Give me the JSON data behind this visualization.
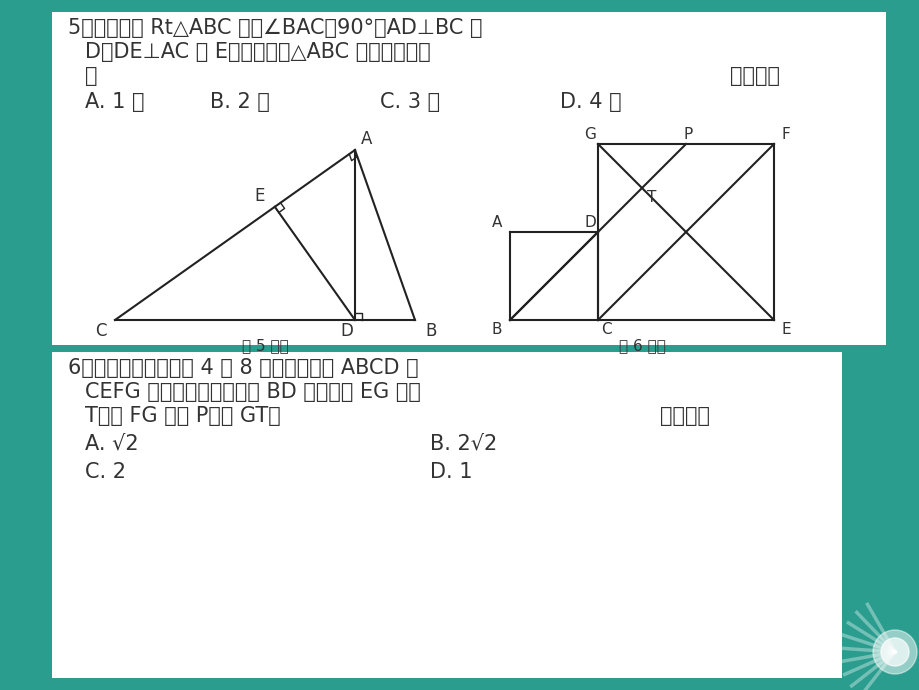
{
  "bg_color": "#2a9d8f",
  "text_color": "#333333",
  "q5_line1": "5．如图，在 Rt△ABC 中，∠BAC＝90°，AD⊥BC 于",
  "q5_line2": "D，DE⊥AC 于 E，则图中与△ABC 相似的三角形",
  "q5_line3": "有",
  "q5_paren": "（　　）",
  "q5_A": "A. 1 个",
  "q5_B": "B. 2 个",
  "q5_C": "C. 3 个",
  "q5_D": "D. 4 个",
  "q5_label": "第 5 题图",
  "q6_label": "第 6 题图",
  "q6_line1": "6．如图，边长分别为 4 和 8 的两个正方形 ABCD 和",
  "q6_line2": "CEFG 并排放在一起，连结 BD 并延长交 EG 于点",
  "q6_line3": "T，交 FG 于点 P，则 GT＝",
  "q6_paren": "（　　）",
  "q6_A": "A. √2",
  "q6_B": "B. 2√2",
  "q6_C": "C. 2",
  "q6_D": "D. 1"
}
